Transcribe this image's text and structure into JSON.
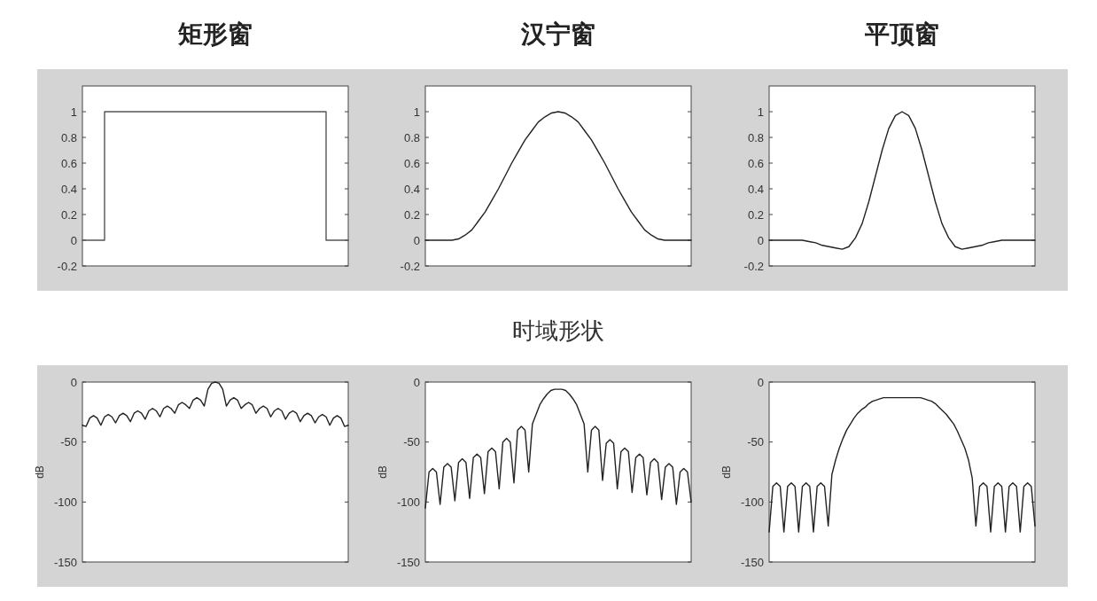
{
  "chart_data": [
    {
      "type": "step",
      "title": "矩形窗",
      "categories": [
        null,
        null,
        null,
        null,
        null,
        null,
        null,
        null,
        null,
        null,
        null,
        null,
        null
      ],
      "series": [
        {
          "color": "#555555",
          "values": [
            0,
            1,
            1,
            1,
            1,
            1,
            1,
            1,
            1,
            1,
            1,
            0,
            0
          ]
        }
      ],
      "ylim": [
        -0.2,
        1.2
      ],
      "yticks": [
        -0.2,
        0,
        0.2,
        0.4,
        0.6,
        0.8,
        1
      ]
    },
    {
      "type": "line",
      "title": "汉宁窗",
      "annotations": [
        "时域形状"
      ],
      "categories": [
        null,
        null,
        null,
        null,
        null,
        null,
        null,
        null,
        null,
        null,
        null,
        null,
        null,
        null,
        null,
        null,
        null,
        null,
        null,
        null,
        null,
        null,
        null,
        null,
        null,
        null,
        null,
        null,
        null,
        null,
        null,
        null,
        null,
        null,
        null,
        null,
        null,
        null,
        null,
        null,
        null
      ],
      "series": [
        {
          "color": "#222222",
          "values": [
            0,
            0,
            0,
            0,
            0,
            0.01,
            0.04,
            0.08,
            0.15,
            0.22,
            0.31,
            0.4,
            0.5,
            0.6,
            0.69,
            0.78,
            0.85,
            0.92,
            0.96,
            0.99,
            1,
            0.99,
            0.96,
            0.92,
            0.85,
            0.78,
            0.69,
            0.6,
            0.5,
            0.4,
            0.31,
            0.22,
            0.15,
            0.08,
            0.04,
            0.01,
            0,
            0,
            0,
            0,
            0
          ]
        }
      ],
      "ylim": [
        -0.2,
        1.2
      ],
      "yticks": [
        -0.2,
        0,
        0.2,
        0.4,
        0.6,
        0.8,
        1
      ]
    },
    {
      "type": "line",
      "title": "平顶窗",
      "categories": [
        null,
        null,
        null,
        null,
        null,
        null,
        null,
        null,
        null,
        null,
        null,
        null,
        null,
        null,
        null,
        null,
        null,
        null,
        null,
        null,
        null,
        null,
        null,
        null,
        null,
        null,
        null,
        null,
        null,
        null,
        null,
        null,
        null,
        null,
        null,
        null,
        null,
        null,
        null,
        null,
        null
      ],
      "series": [
        {
          "color": "#222222",
          "values": [
            0,
            0,
            0,
            0,
            0,
            0,
            -0.01,
            -0.02,
            -0.04,
            -0.05,
            -0.06,
            -0.07,
            -0.05,
            0.02,
            0.13,
            0.3,
            0.5,
            0.7,
            0.87,
            0.97,
            1,
            0.97,
            0.87,
            0.7,
            0.5,
            0.3,
            0.13,
            0.02,
            -0.05,
            -0.07,
            -0.06,
            -0.05,
            -0.04,
            -0.02,
            -0.01,
            0,
            0,
            0,
            0,
            0,
            0
          ]
        }
      ],
      "ylim": [
        -0.2,
        1.2
      ],
      "yticks": [
        -0.2,
        0,
        0.2,
        0.4,
        0.6,
        0.8,
        1
      ]
    },
    {
      "type": "line",
      "ylabel": "dB",
      "categories": [
        null,
        null,
        null,
        null,
        null,
        null,
        null,
        null,
        null,
        null,
        null,
        null,
        null,
        null,
        null,
        null,
        null,
        null,
        null,
        null,
        null,
        null,
        null,
        null,
        null,
        null,
        null,
        null,
        null,
        null,
        null,
        null,
        null,
        null,
        null,
        null,
        null,
        null,
        null,
        null,
        null,
        null,
        null,
        null,
        null,
        null,
        null,
        null,
        null,
        null,
        null,
        null,
        null,
        null,
        null,
        null,
        null,
        null,
        null,
        null,
        null,
        null,
        null,
        null,
        null,
        null,
        null,
        null,
        null,
        null,
        null,
        null,
        null
      ],
      "series": [
        {
          "color": "#222222",
          "values": [
            -36,
            -37,
            -30,
            -28,
            -30,
            -36,
            -29,
            -27,
            -29,
            -34,
            -28,
            -26,
            -28,
            -33,
            -26,
            -24,
            -26,
            -31,
            -24,
            -22,
            -24,
            -29,
            -22,
            -20,
            -22,
            -26,
            -19,
            -17,
            -19,
            -22,
            -15,
            -13,
            -15,
            -20,
            -6,
            -1,
            0,
            -1,
            -6,
            -20,
            -15,
            -13,
            -15,
            -22,
            -19,
            -17,
            -19,
            -26,
            -22,
            -20,
            -22,
            -29,
            -24,
            -22,
            -24,
            -31,
            -26,
            -24,
            -26,
            -33,
            -28,
            -26,
            -28,
            -34,
            -29,
            -27,
            -29,
            -36,
            -30,
            -28,
            -30,
            -37,
            -36
          ]
        }
      ],
      "ylim": [
        -150,
        0
      ],
      "yticks": [
        -150,
        -100,
        -50,
        0
      ]
    },
    {
      "type": "line",
      "ylabel": "dB",
      "categories": [
        null,
        null,
        null,
        null,
        null,
        null,
        null,
        null,
        null,
        null,
        null,
        null,
        null,
        null,
        null,
        null,
        null,
        null,
        null,
        null,
        null,
        null,
        null,
        null,
        null,
        null,
        null,
        null,
        null,
        null,
        null,
        null,
        null,
        null,
        null,
        null,
        null,
        null,
        null,
        null,
        null,
        null,
        null,
        null,
        null,
        null,
        null,
        null,
        null,
        null,
        null,
        null,
        null,
        null,
        null,
        null,
        null,
        null,
        null,
        null,
        null,
        null,
        null,
        null,
        null,
        null,
        null,
        null,
        null,
        null,
        null,
        null,
        null
      ],
      "series": [
        {
          "color": "#222222",
          "values": [
            -105,
            -75,
            -72,
            -75,
            -102,
            -71,
            -68,
            -71,
            -99,
            -67,
            -64,
            -67,
            -97,
            -63,
            -60,
            -63,
            -93,
            -58,
            -55,
            -58,
            -89,
            -50,
            -47,
            -50,
            -84,
            -40,
            -37,
            -40,
            -75,
            -35,
            -27,
            -19,
            -14,
            -10,
            -7,
            -6,
            -6,
            -6,
            -7,
            -10,
            -14,
            -19,
            -27,
            -35,
            -75,
            -40,
            -37,
            -40,
            -82,
            -51,
            -48,
            -51,
            -89,
            -58,
            -55,
            -58,
            -92,
            -63,
            -60,
            -63,
            -94,
            -67,
            -64,
            -67,
            -98,
            -71,
            -68,
            -71,
            -102,
            -75,
            -72,
            -75,
            -100
          ]
        }
      ],
      "ylim": [
        -150,
        0
      ],
      "yticks": [
        -150,
        -100,
        -50,
        0
      ]
    },
    {
      "type": "line",
      "ylabel": "dB",
      "categories": [
        null,
        null,
        null,
        null,
        null,
        null,
        null,
        null,
        null,
        null,
        null,
        null,
        null,
        null,
        null,
        null,
        null,
        null,
        null,
        null,
        null,
        null,
        null,
        null,
        null,
        null,
        null,
        null,
        null,
        null,
        null,
        null,
        null,
        null,
        null,
        null,
        null,
        null,
        null,
        null,
        null,
        null,
        null,
        null,
        null,
        null,
        null,
        null,
        null,
        null,
        null,
        null,
        null,
        null,
        null,
        null,
        null,
        null,
        null,
        null,
        null,
        null,
        null,
        null,
        null,
        null,
        null,
        null,
        null,
        null,
        null,
        null,
        null
      ],
      "series": [
        {
          "color": "#222222",
          "values": [
            -125,
            -87,
            -84,
            -87,
            -125,
            -87,
            -84,
            -87,
            -125,
            -87,
            -84,
            -87,
            -125,
            -87,
            -84,
            -87,
            -120,
            -77,
            -65,
            -55,
            -47,
            -40,
            -35,
            -30,
            -26,
            -23,
            -21,
            -18,
            -16,
            -15,
            -14,
            -13,
            -13,
            -13,
            -13,
            -13,
            -13,
            -13,
            -13,
            -13,
            -13,
            -13,
            -14,
            -15,
            -16,
            -18,
            -21,
            -24,
            -27,
            -31,
            -35,
            -41,
            -48,
            -55,
            -65,
            -80,
            -120,
            -87,
            -84,
            -87,
            -125,
            -87,
            -84,
            -87,
            -125,
            -87,
            -84,
            -87,
            -125,
            -87,
            -84,
            -87,
            -120
          ]
        }
      ],
      "ylim": [
        -150,
        0
      ],
      "yticks": [
        -150,
        -100,
        -50,
        0
      ]
    }
  ]
}
